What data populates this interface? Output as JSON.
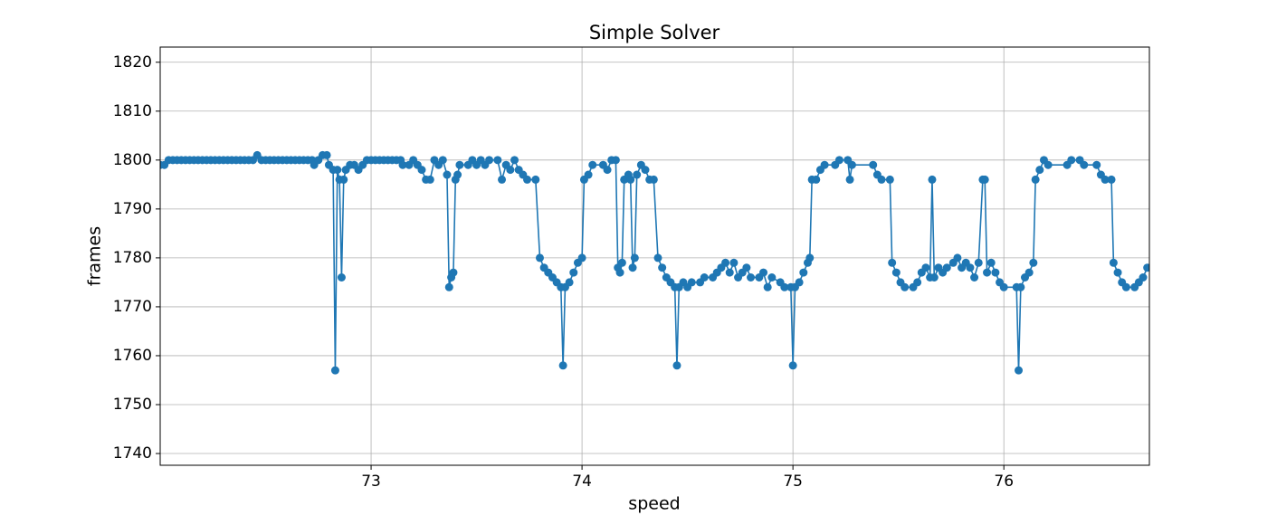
{
  "chart_data": {
    "type": "line",
    "title": "Simple Solver",
    "x_label": "speed",
    "y_label": "frames",
    "xlim": [
      72.0,
      76.69
    ],
    "ylim": [
      1737.6,
      1823.1
    ],
    "xticks": [
      73,
      74,
      75,
      76
    ],
    "yticks": [
      1740,
      1750,
      1760,
      1770,
      1780,
      1790,
      1800,
      1810,
      1820
    ],
    "grid": true,
    "x": [
      72.0,
      72.02,
      72.04,
      72.06,
      72.08,
      72.1,
      72.12,
      72.14,
      72.16,
      72.18,
      72.2,
      72.22,
      72.24,
      72.26,
      72.28,
      72.3,
      72.32,
      72.34,
      72.36,
      72.38,
      72.4,
      72.42,
      72.44,
      72.46,
      72.48,
      72.5,
      72.52,
      72.54,
      72.56,
      72.58,
      72.6,
      72.62,
      72.64,
      72.66,
      72.68,
      72.7,
      72.72,
      72.73,
      72.75,
      72.77,
      72.79,
      72.8,
      72.82,
      72.83,
      72.84,
      72.85,
      72.86,
      72.87,
      72.88,
      72.9,
      72.92,
      72.94,
      72.96,
      72.98,
      73.0,
      73.02,
      73.04,
      73.06,
      73.08,
      73.1,
      73.12,
      73.14,
      73.15,
      73.18,
      73.2,
      73.22,
      73.24,
      73.26,
      73.28,
      73.3,
      73.32,
      73.34,
      73.36,
      73.37,
      73.38,
      73.39,
      73.4,
      73.41,
      73.42,
      73.46,
      73.48,
      73.5,
      73.52,
      73.54,
      73.56,
      73.6,
      73.62,
      73.64,
      73.66,
      73.68,
      73.7,
      73.72,
      73.74,
      73.78,
      73.8,
      73.82,
      73.84,
      73.86,
      73.88,
      73.9,
      73.91,
      73.92,
      73.94,
      73.96,
      73.98,
      74.0,
      74.01,
      74.03,
      74.05,
      74.1,
      74.12,
      74.14,
      74.16,
      74.17,
      74.18,
      74.19,
      74.2,
      74.22,
      74.23,
      74.24,
      74.25,
      74.26,
      74.28,
      74.3,
      74.32,
      74.34,
      74.36,
      74.38,
      74.4,
      74.42,
      74.44,
      74.45,
      74.46,
      74.48,
      74.5,
      74.52,
      74.56,
      74.58,
      74.62,
      74.64,
      74.66,
      74.68,
      74.7,
      74.72,
      74.74,
      74.76,
      74.78,
      74.8,
      74.84,
      74.86,
      74.88,
      74.9,
      74.94,
      74.96,
      74.99,
      75.0,
      75.01,
      75.03,
      75.05,
      75.07,
      75.08,
      75.09,
      75.11,
      75.13,
      75.15,
      75.2,
      75.22,
      75.26,
      75.27,
      75.28,
      75.38,
      75.4,
      75.42,
      75.46,
      75.47,
      75.49,
      75.51,
      75.53,
      75.57,
      75.59,
      75.61,
      75.63,
      75.65,
      75.66,
      75.67,
      75.69,
      75.71,
      75.73,
      75.76,
      75.78,
      75.8,
      75.82,
      75.84,
      75.86,
      75.88,
      75.9,
      75.91,
      75.92,
      75.94,
      75.96,
      75.98,
      76.0,
      76.06,
      76.07,
      76.08,
      76.1,
      76.12,
      76.14,
      76.15,
      76.17,
      76.19,
      76.21,
      76.3,
      76.32,
      76.36,
      76.38,
      76.44,
      76.46,
      76.48,
      76.51,
      76.52,
      76.54,
      76.56,
      76.58,
      76.62,
      76.64,
      76.66,
      76.68
    ],
    "series": [
      {
        "color": "#1f77b4",
        "values": [
          1799,
          1799,
          1800,
          1800,
          1800,
          1800,
          1800,
          1800,
          1800,
          1800,
          1800,
          1800,
          1800,
          1800,
          1800,
          1800,
          1800,
          1800,
          1800,
          1800,
          1800,
          1800,
          1800,
          1801,
          1800,
          1800,
          1800,
          1800,
          1800,
          1800,
          1800,
          1800,
          1800,
          1800,
          1800,
          1800,
          1800,
          1799,
          1800,
          1801,
          1801,
          1799,
          1798,
          1757,
          1798,
          1796,
          1776,
          1796,
          1798,
          1799,
          1799,
          1798,
          1799,
          1800,
          1800,
          1800,
          1800,
          1800,
          1800,
          1800,
          1800,
          1800,
          1799,
          1799,
          1800,
          1799,
          1798,
          1796,
          1796,
          1800,
          1799,
          1800,
          1797,
          1774,
          1776,
          1777,
          1796,
          1797,
          1799,
          1799,
          1800,
          1799,
          1800,
          1799,
          1800,
          1800,
          1796,
          1799,
          1798,
          1800,
          1798,
          1797,
          1796,
          1796,
          1780,
          1778,
          1777,
          1776,
          1775,
          1774,
          1758,
          1774,
          1775,
          1777,
          1779,
          1780,
          1796,
          1797,
          1799,
          1799,
          1798,
          1800,
          1800,
          1778,
          1777,
          1779,
          1796,
          1797,
          1796,
          1778,
          1780,
          1797,
          1799,
          1798,
          1796,
          1796,
          1780,
          1778,
          1776,
          1775,
          1774,
          1758,
          1774,
          1775,
          1774,
          1775,
          1775,
          1776,
          1776,
          1777,
          1778,
          1779,
          1777,
          1779,
          1776,
          1777,
          1778,
          1776,
          1776,
          1777,
          1774,
          1776,
          1775,
          1774,
          1774,
          1758,
          1774,
          1775,
          1777,
          1779,
          1780,
          1796,
          1796,
          1798,
          1799,
          1799,
          1800,
          1800,
          1796,
          1799,
          1799,
          1797,
          1796,
          1796,
          1779,
          1777,
          1775,
          1774,
          1774,
          1775,
          1777,
          1778,
          1776,
          1796,
          1776,
          1778,
          1777,
          1778,
          1779,
          1780,
          1778,
          1779,
          1778,
          1776,
          1779,
          1796,
          1796,
          1777,
          1779,
          1777,
          1775,
          1774,
          1774,
          1757,
          1774,
          1776,
          1777,
          1779,
          1796,
          1798,
          1800,
          1799,
          1799,
          1800,
          1800,
          1799,
          1799,
          1797,
          1796,
          1796,
          1779,
          1777,
          1775,
          1774,
          1774,
          1775,
          1776,
          1778
        ]
      }
    ]
  }
}
